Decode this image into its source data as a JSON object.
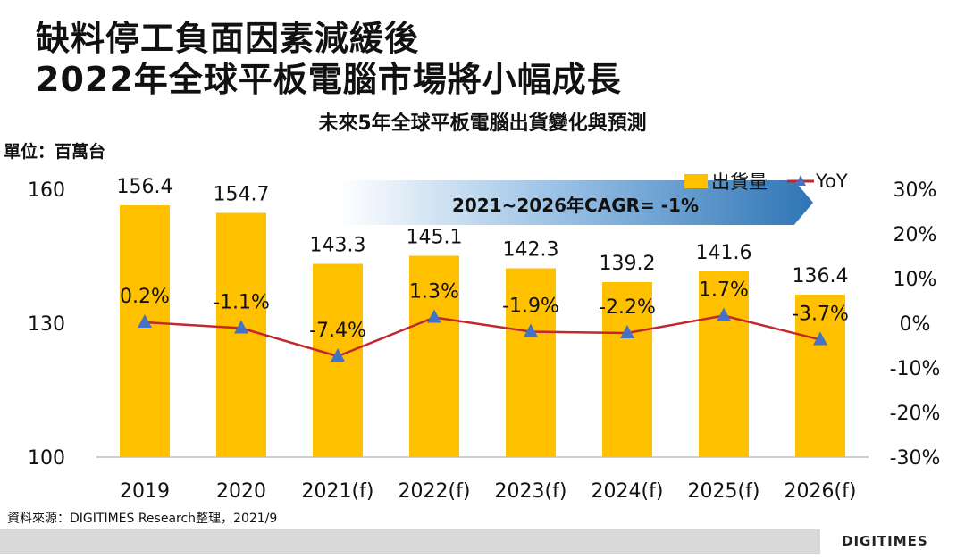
{
  "header": {
    "line1": "缺料停工負面因素減緩後",
    "line2": "2022年全球平板電腦市場將小幅成長"
  },
  "chart_subtitle": "未來5年全球平板電腦出貨變化與預測",
  "unit_label": "單位：百萬台",
  "cagr_label": "2021~2026年CAGR= -1%",
  "legend": {
    "bar": "出貨量",
    "line": "YoY"
  },
  "source": "資料來源：DIGITIMES Research整理，2021/9",
  "brand": "DIGITIMES",
  "colors": {
    "bar": "#ffc000",
    "line": "#c0282e",
    "marker": "#4472c4"
  },
  "chart_data": {
    "type": "bar",
    "categories": [
      "2019",
      "2020",
      "2021(f)",
      "2022(f)",
      "2023(f)",
      "2024(f)",
      "2025(f)",
      "2026(f)"
    ],
    "series": [
      {
        "name": "出貨量",
        "type": "bar",
        "axis": "left",
        "values": [
          156.4,
          154.7,
          143.3,
          145.1,
          142.3,
          139.2,
          141.6,
          136.4
        ]
      },
      {
        "name": "YoY",
        "type": "line",
        "axis": "right",
        "values": [
          0.2,
          -1.1,
          -7.4,
          1.3,
          -1.9,
          -2.2,
          1.7,
          -3.7
        ]
      }
    ],
    "bar_labels": [
      "156.4",
      "154.7",
      "143.3",
      "145.1",
      "142.3",
      "139.2",
      "141.6",
      "136.4"
    ],
    "yoy_labels": [
      "0.2%",
      "-1.1%",
      "-7.4%",
      "1.3%",
      "-1.9%",
      "-2.2%",
      "1.7%",
      "-3.7%"
    ],
    "ylim_left": [
      100,
      160
    ],
    "yticks_left": [
      "160",
      "130",
      "100"
    ],
    "ylim_right": [
      -30,
      30
    ],
    "yticks_right": [
      "30%",
      "20%",
      "10%",
      "0%",
      "-10%",
      "-20%",
      "-30%"
    ],
    "legend_position": "top-right",
    "grid": false
  }
}
